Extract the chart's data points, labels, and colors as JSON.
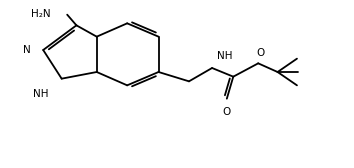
{
  "bg": "#ffffff",
  "lc": "#000000",
  "lw": 1.3,
  "fs": 7.5,
  "fw": 3.54,
  "fh": 1.68,
  "dpi": 100,
  "xlim": [
    0.0,
    10.5
  ],
  "ylim": [
    -1.8,
    3.6
  ]
}
